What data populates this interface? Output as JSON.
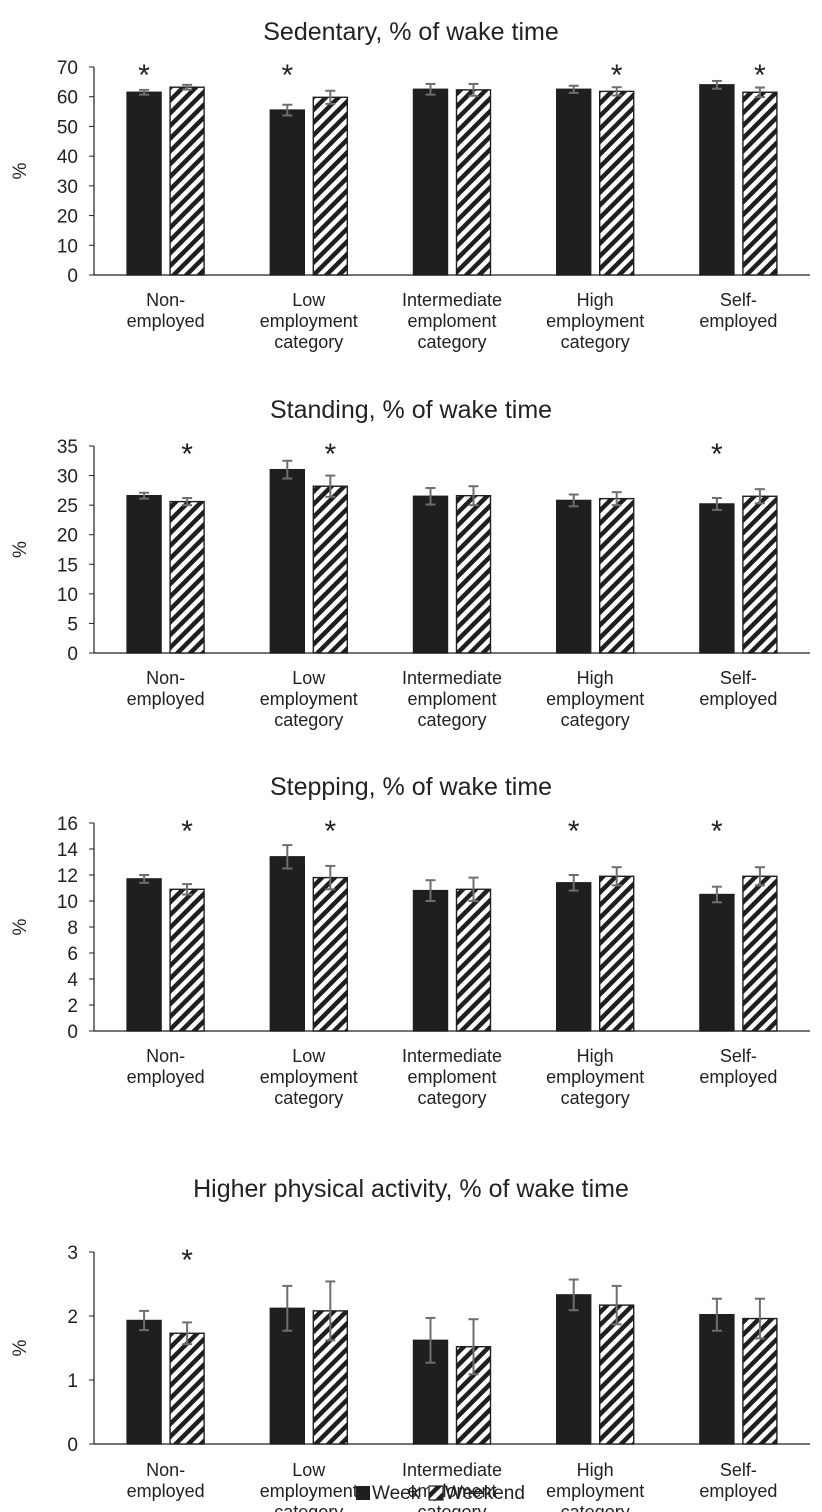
{
  "colors": {
    "week": "#1f1f1f",
    "weekend_stripe": "#1f1f1f",
    "error_bar": "#6e6e6e",
    "axis": "#222222"
  },
  "categories": [
    [
      "Non-",
      "employed"
    ],
    [
      "Low",
      "employment",
      "category"
    ],
    [
      "Intermediate",
      "emploment",
      "category"
    ],
    [
      "High",
      "employment",
      "category"
    ],
    [
      "Self-",
      "employed"
    ]
  ],
  "legend": {
    "week": "Week",
    "weekend": "Weekend"
  },
  "chart_data": [
    {
      "type": "bar",
      "title": "Sedentary, % of wake time",
      "ylabel": "%",
      "ylim": [
        0,
        70
      ],
      "yticks": [
        0,
        10,
        20,
        30,
        40,
        50,
        60,
        70
      ],
      "series": [
        {
          "name": "Week",
          "values": [
            61.5,
            55.5,
            62.5,
            62.5,
            64.0
          ],
          "err": [
            0.8,
            1.8,
            1.8,
            1.2,
            1.3
          ]
        },
        {
          "name": "Weekend",
          "values": [
            63.2,
            59.8,
            62.3,
            61.8,
            61.5
          ],
          "err": [
            0.8,
            2.2,
            2.0,
            1.4,
            1.6
          ]
        }
      ],
      "significant": [
        true,
        true,
        false,
        true,
        true
      ],
      "significance_marker": "*"
    },
    {
      "type": "bar",
      "title": "Standing, % of wake time",
      "ylabel": "%",
      "ylim": [
        0,
        35
      ],
      "yticks": [
        0,
        5,
        10,
        15,
        20,
        25,
        30,
        35
      ],
      "series": [
        {
          "name": "Week",
          "values": [
            26.6,
            31.0,
            26.5,
            25.8,
            25.2
          ],
          "err": [
            0.5,
            1.5,
            1.4,
            1.0,
            1.0
          ]
        },
        {
          "name": "Weekend",
          "values": [
            25.6,
            28.2,
            26.6,
            26.1,
            26.5
          ],
          "err": [
            0.6,
            1.8,
            1.6,
            1.1,
            1.2
          ]
        }
      ],
      "significant": [
        true,
        true,
        false,
        false,
        true
      ],
      "significance_marker": "*"
    },
    {
      "type": "bar",
      "title": "Stepping, % of wake time",
      "ylabel": "%",
      "ylim": [
        0,
        16
      ],
      "yticks": [
        0,
        2,
        4,
        6,
        8,
        10,
        12,
        14,
        16
      ],
      "series": [
        {
          "name": "Week",
          "values": [
            11.7,
            13.4,
            10.8,
            11.4,
            10.5
          ],
          "err": [
            0.3,
            0.9,
            0.8,
            0.6,
            0.6
          ]
        },
        {
          "name": "Weekend",
          "values": [
            10.9,
            11.8,
            10.9,
            11.9,
            11.9
          ],
          "err": [
            0.4,
            0.9,
            0.9,
            0.7,
            0.7
          ]
        }
      ],
      "significant": [
        true,
        true,
        false,
        true,
        true
      ],
      "significance_marker": "*"
    },
    {
      "type": "bar",
      "title": "Higher physical activity, % of wake time",
      "ylabel": "%",
      "ylim": [
        0,
        3
      ],
      "yticks": [
        0,
        1,
        2,
        3
      ],
      "series": [
        {
          "name": "Week",
          "values": [
            1.93,
            2.12,
            1.62,
            2.33,
            2.02
          ],
          "err": [
            0.15,
            0.35,
            0.35,
            0.24,
            0.25
          ]
        },
        {
          "name": "Weekend",
          "values": [
            1.73,
            2.08,
            1.52,
            2.17,
            1.96
          ],
          "err": [
            0.17,
            0.46,
            0.43,
            0.3,
            0.31
          ]
        }
      ],
      "significant": [
        true,
        false,
        false,
        false,
        false
      ],
      "significance_marker": "*"
    }
  ]
}
